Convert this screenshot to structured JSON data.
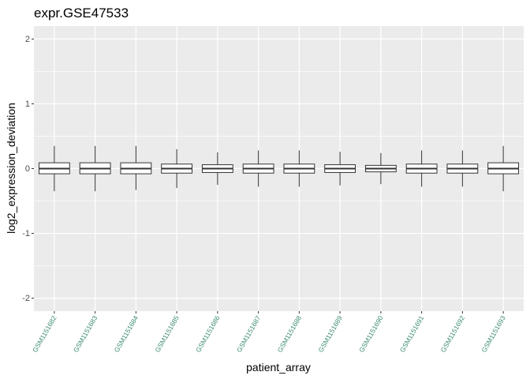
{
  "chart_data": {
    "type": "boxplot",
    "title": "expr.GSE47533",
    "xlabel": "patient_array",
    "ylabel": "log2_expression_deviation",
    "ylim": [
      -2.2,
      2.2
    ],
    "yticks": [
      -2,
      -1,
      0,
      1,
      2
    ],
    "ytick_labels": [
      "-2",
      "-1",
      "0",
      "1",
      "2"
    ],
    "grid": true,
    "legend": "none",
    "categories": [
      "GSM1151682",
      "GSM1151683",
      "GSM1151684",
      "GSM1151685",
      "GSM1151686",
      "GSM1151687",
      "GSM1151688",
      "GSM1151689",
      "GSM1151690",
      "GSM1151691",
      "GSM1151692",
      "GSM1151693"
    ],
    "boxes": [
      {
        "min": -0.35,
        "q1": -0.08,
        "median": 0.0,
        "q3": 0.09,
        "max": 0.35
      },
      {
        "min": -0.35,
        "q1": -0.08,
        "median": 0.0,
        "q3": 0.09,
        "max": 0.35
      },
      {
        "min": -0.33,
        "q1": -0.08,
        "median": 0.0,
        "q3": 0.09,
        "max": 0.35
      },
      {
        "min": -0.3,
        "q1": -0.07,
        "median": 0.0,
        "q3": 0.07,
        "max": 0.3
      },
      {
        "min": -0.25,
        "q1": -0.06,
        "median": 0.0,
        "q3": 0.06,
        "max": 0.25
      },
      {
        "min": -0.28,
        "q1": -0.07,
        "median": 0.0,
        "q3": 0.07,
        "max": 0.28
      },
      {
        "min": -0.28,
        "q1": -0.07,
        "median": 0.0,
        "q3": 0.07,
        "max": 0.28
      },
      {
        "min": -0.26,
        "q1": -0.06,
        "median": 0.0,
        "q3": 0.06,
        "max": 0.26
      },
      {
        "min": -0.24,
        "q1": -0.05,
        "median": 0.0,
        "q3": 0.05,
        "max": 0.24
      },
      {
        "min": -0.28,
        "q1": -0.07,
        "median": 0.0,
        "q3": 0.07,
        "max": 0.28
      },
      {
        "min": -0.28,
        "q1": -0.07,
        "median": 0.0,
        "q3": 0.07,
        "max": 0.28
      },
      {
        "min": -0.35,
        "q1": -0.08,
        "median": 0.0,
        "q3": 0.09,
        "max": 0.35
      }
    ],
    "colors": {
      "panel_background": "#ebebeb",
      "grid": "#ffffff",
      "box_fill": "#ffffff",
      "box_stroke": "#333333",
      "x_tick_label": "#3d8c73",
      "y_tick_label": "#4d4d4d",
      "text": "#000000"
    }
  }
}
